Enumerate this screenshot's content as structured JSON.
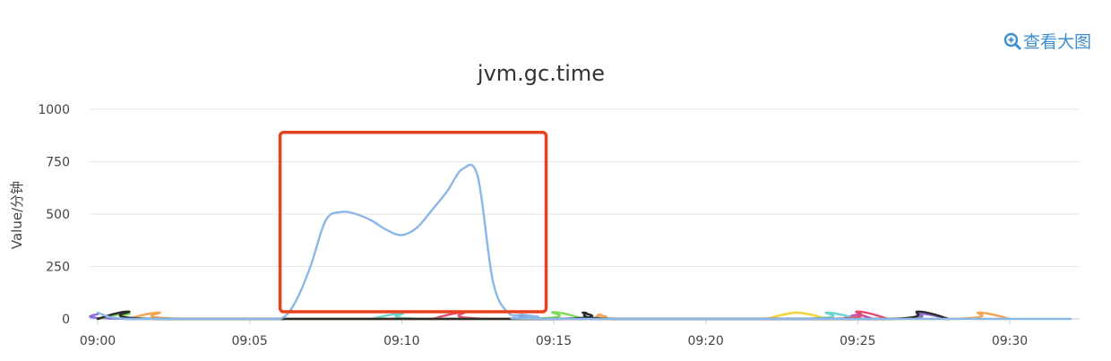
{
  "toolbar": {
    "view_large_label": "查看大图",
    "view_large_icon": "zoom-in-icon"
  },
  "colors": {
    "accent": "#3d8fd1",
    "highlight_box": "#e8411f",
    "grid": "#e6e6e6"
  },
  "chart_data": {
    "type": "line",
    "title": "jvm.gc.time",
    "ylabel": "Value/分钟",
    "xlabel": "",
    "ylim": [
      0,
      1000
    ],
    "yticks": [
      0,
      250,
      500,
      750,
      1000
    ],
    "xlim": [
      "09:00",
      "09:32"
    ],
    "xticks": [
      "09:00",
      "09:05",
      "09:10",
      "09:15",
      "09:20",
      "09:25",
      "09:30"
    ],
    "grid": "horizontal",
    "highlight": {
      "x_range": [
        "09:06",
        "09:14:45"
      ],
      "y_range": [
        0,
        890
      ],
      "color": "#e8411f"
    },
    "series": [
      {
        "color": "#8bb7e8",
        "points": [
          [
            "09:00",
            30
          ],
          [
            "09:01",
            0
          ],
          [
            "09:05",
            0
          ],
          [
            "09:06",
            0
          ],
          [
            "09:06:30",
            80
          ],
          [
            "09:07",
            250
          ],
          [
            "09:07:30",
            470
          ],
          [
            "09:08",
            510
          ],
          [
            "09:08:30",
            500
          ],
          [
            "09:09",
            470
          ],
          [
            "09:09:30",
            425
          ],
          [
            "09:10",
            400
          ],
          [
            "09:10:30",
            435
          ],
          [
            "09:11",
            520
          ],
          [
            "09:11:30",
            610
          ],
          [
            "09:12",
            715
          ],
          [
            "09:12:30",
            680
          ],
          [
            "09:13",
            180
          ],
          [
            "09:13:30",
            30
          ],
          [
            "09:14",
            20
          ],
          [
            "09:14:30",
            10
          ],
          [
            "09:15",
            0
          ],
          [
            "09:32",
            0
          ]
        ]
      },
      {
        "color": "#2b2b2b",
        "points": [
          [
            "09:00",
            0
          ],
          [
            "09:01",
            35
          ],
          [
            "09:02",
            0
          ],
          [
            "09:15",
            0
          ],
          [
            "09:16",
            30
          ],
          [
            "09:17",
            0
          ],
          [
            "09:26",
            0
          ],
          [
            "09:27",
            35
          ],
          [
            "09:28",
            0
          ]
        ]
      },
      {
        "color": "#f2a553",
        "points": [
          [
            "09:01",
            0
          ],
          [
            "09:02",
            30
          ],
          [
            "09:03",
            0
          ],
          [
            "09:15:30",
            0
          ],
          [
            "09:16:30",
            20
          ],
          [
            "09:17:30",
            0
          ],
          [
            "09:28",
            0
          ],
          [
            "09:29",
            30
          ],
          [
            "09:30",
            0
          ]
        ]
      },
      {
        "color": "#7ed957",
        "points": [
          [
            "09:00",
            0
          ],
          [
            "09:01",
            25
          ],
          [
            "09:02",
            0
          ],
          [
            "09:14",
            0
          ],
          [
            "09:15",
            32
          ],
          [
            "09:16",
            0
          ]
        ]
      },
      {
        "color": "#e84a6a",
        "points": [
          [
            "09:11",
            0
          ],
          [
            "09:12",
            30
          ],
          [
            "09:13",
            0
          ],
          [
            "09:24",
            0
          ],
          [
            "09:25",
            35
          ],
          [
            "09:26",
            0
          ]
        ]
      },
      {
        "color": "#6fd4cf",
        "points": [
          [
            "09:09",
            0
          ],
          [
            "09:10",
            25
          ],
          [
            "09:11",
            0
          ],
          [
            "09:23",
            0
          ],
          [
            "09:24",
            30
          ],
          [
            "09:25",
            0
          ]
        ]
      },
      {
        "color": "#f4d23a",
        "points": [
          [
            "09:22",
            0
          ],
          [
            "09:23",
            30
          ],
          [
            "09:24",
            0
          ]
        ]
      },
      {
        "color": "#8a6dd6",
        "points": [
          [
            "09:00",
            25
          ],
          [
            "09:01",
            0
          ],
          [
            "09:13",
            0
          ],
          [
            "09:14",
            18
          ],
          [
            "09:15",
            0
          ],
          [
            "09:26",
            0
          ],
          [
            "09:27",
            25
          ],
          [
            "09:28",
            0
          ]
        ]
      },
      {
        "color": "#c24fb0",
        "points": [
          [
            "09:24:30",
            0
          ],
          [
            "09:25",
            20
          ],
          [
            "09:25:30",
            0
          ]
        ]
      }
    ]
  }
}
